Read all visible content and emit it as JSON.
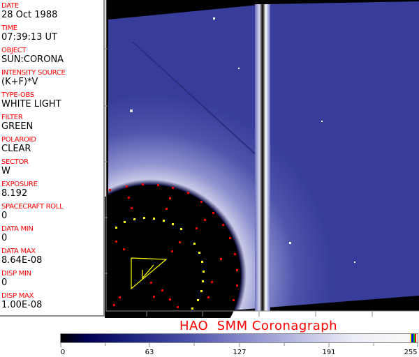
{
  "fields": [
    {
      "label": "DATE",
      "value": "28 Oct 1988"
    },
    {
      "label": "TIME",
      "value": "07:39:13 UT"
    },
    {
      "label": "OBJECT",
      "value": "SUN:CORONA"
    },
    {
      "label": "INTENSITY SOURCE",
      "value": "(K+F)*V"
    },
    {
      "label": "TYPE-OBS",
      "value": "WHITE LIGHT"
    },
    {
      "label": "FILTER",
      "value": "GREEN"
    },
    {
      "label": "POLAROID",
      "value": "CLEAR"
    },
    {
      "label": "SECTOR",
      "value": "W"
    },
    {
      "label": "EXPOSURE",
      "value": "8.192"
    },
    {
      "label": "SPACECRAFT ROLL",
      "value": "0"
    },
    {
      "label": "DATA MIN",
      "value": "0"
    },
    {
      "label": "DATA MAX",
      "value": "8.64E-08"
    },
    {
      "label": "DISP MIN",
      "value": "0"
    },
    {
      "label": "DISP MAX",
      "value": "1.00E-08"
    }
  ],
  "title": "HAO  SMM Coronagraph",
  "colorbar": {
    "ticks": [
      "0",
      "63",
      "127",
      "191",
      "255"
    ],
    "colors": {
      "dark": "#000000",
      "mid": "#4a4fa6",
      "light": "#f8f8f8"
    },
    "marker_colors": [
      "#ffff00",
      "#0000ff",
      "#00c000",
      "#ff0000"
    ]
  },
  "image": {
    "description_colors": {
      "corona": "#3a3f9c",
      "occulter": "#000000",
      "markers_red": "#ff0000",
      "markers_yellow": "#ffff00"
    }
  }
}
